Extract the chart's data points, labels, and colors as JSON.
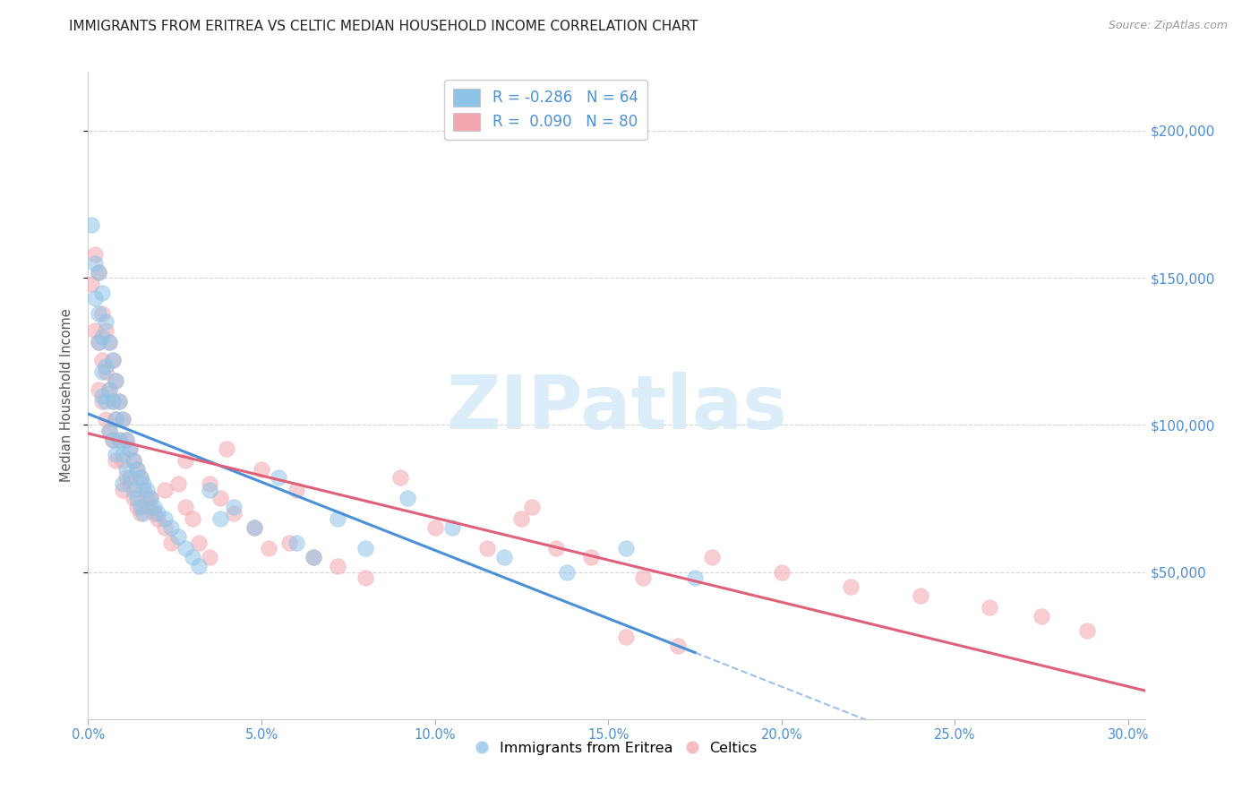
{
  "title": "IMMIGRANTS FROM ERITREA VS CELTIC MEDIAN HOUSEHOLD INCOME CORRELATION CHART",
  "source": "Source: ZipAtlas.com",
  "ylabel": "Median Household Income",
  "xlim": [
    0.0,
    0.305
  ],
  "ylim": [
    0,
    220000
  ],
  "yticks": [
    50000,
    100000,
    150000,
    200000
  ],
  "ytick_labels": [
    "$50,000",
    "$100,000",
    "$150,000",
    "$200,000"
  ],
  "xticks": [
    0.0,
    0.05,
    0.1,
    0.15,
    0.2,
    0.25,
    0.3
  ],
  "xtick_labels": [
    "0.0%",
    "5.0%",
    "10.0%",
    "15.0%",
    "20.0%",
    "25.0%",
    "30.0%"
  ],
  "blue_R": -0.286,
  "blue_N": 64,
  "pink_R": 0.09,
  "pink_N": 80,
  "blue_color": "#8ec4e8",
  "pink_color": "#f4a6b0",
  "blue_edge_color": "#5a9fd4",
  "pink_edge_color": "#e07080",
  "blue_line_color": "#4a90d9",
  "pink_line_color": "#e0607a",
  "axis_tick_color": "#4a90d9",
  "title_color": "#222222",
  "watermark_text": "ZIPatlas",
  "watermark_color": "#d5eaf8",
  "legend_R_color": "#4a90d9",
  "legend_N_color": "#4a90d9",
  "blue_x": [
    0.001,
    0.002,
    0.002,
    0.003,
    0.003,
    0.003,
    0.004,
    0.004,
    0.004,
    0.004,
    0.005,
    0.005,
    0.005,
    0.006,
    0.006,
    0.006,
    0.007,
    0.007,
    0.007,
    0.008,
    0.008,
    0.008,
    0.009,
    0.009,
    0.01,
    0.01,
    0.01,
    0.011,
    0.011,
    0.012,
    0.012,
    0.013,
    0.013,
    0.014,
    0.014,
    0.015,
    0.015,
    0.016,
    0.016,
    0.017,
    0.018,
    0.019,
    0.02,
    0.022,
    0.024,
    0.026,
    0.028,
    0.03,
    0.032,
    0.035,
    0.038,
    0.042,
    0.048,
    0.055,
    0.06,
    0.065,
    0.072,
    0.08,
    0.092,
    0.105,
    0.12,
    0.138,
    0.155,
    0.175
  ],
  "blue_y": [
    168000,
    155000,
    143000,
    152000,
    138000,
    128000,
    145000,
    130000,
    118000,
    110000,
    135000,
    120000,
    108000,
    128000,
    112000,
    98000,
    122000,
    108000,
    95000,
    115000,
    102000,
    90000,
    108000,
    95000,
    102000,
    90000,
    80000,
    95000,
    85000,
    92000,
    82000,
    88000,
    78000,
    85000,
    75000,
    82000,
    72000,
    80000,
    70000,
    78000,
    75000,
    72000,
    70000,
    68000,
    65000,
    62000,
    58000,
    55000,
    52000,
    78000,
    68000,
    72000,
    65000,
    82000,
    60000,
    55000,
    68000,
    58000,
    75000,
    65000,
    55000,
    50000,
    58000,
    48000
  ],
  "pink_x": [
    0.001,
    0.002,
    0.002,
    0.003,
    0.003,
    0.003,
    0.004,
    0.004,
    0.004,
    0.005,
    0.005,
    0.005,
    0.006,
    0.006,
    0.006,
    0.007,
    0.007,
    0.007,
    0.008,
    0.008,
    0.008,
    0.009,
    0.009,
    0.01,
    0.01,
    0.01,
    0.011,
    0.011,
    0.012,
    0.012,
    0.013,
    0.013,
    0.014,
    0.014,
    0.015,
    0.015,
    0.016,
    0.017,
    0.018,
    0.019,
    0.02,
    0.022,
    0.024,
    0.026,
    0.028,
    0.03,
    0.032,
    0.035,
    0.038,
    0.042,
    0.048,
    0.052,
    0.058,
    0.065,
    0.072,
    0.08,
    0.09,
    0.1,
    0.115,
    0.128,
    0.145,
    0.16,
    0.18,
    0.2,
    0.22,
    0.24,
    0.26,
    0.275,
    0.288,
    0.155,
    0.17,
    0.04,
    0.05,
    0.06,
    0.125,
    0.135,
    0.035,
    0.028,
    0.022,
    0.018
  ],
  "pink_y": [
    148000,
    158000,
    132000,
    152000,
    128000,
    112000,
    138000,
    122000,
    108000,
    132000,
    118000,
    102000,
    128000,
    112000,
    98000,
    122000,
    108000,
    95000,
    115000,
    102000,
    88000,
    108000,
    95000,
    102000,
    88000,
    78000,
    95000,
    82000,
    92000,
    80000,
    88000,
    75000,
    85000,
    72000,
    82000,
    70000,
    78000,
    75000,
    72000,
    70000,
    68000,
    65000,
    60000,
    80000,
    72000,
    68000,
    60000,
    55000,
    75000,
    70000,
    65000,
    58000,
    60000,
    55000,
    52000,
    48000,
    82000,
    65000,
    58000,
    72000,
    55000,
    48000,
    55000,
    50000,
    45000,
    42000,
    38000,
    35000,
    30000,
    28000,
    25000,
    92000,
    85000,
    78000,
    68000,
    58000,
    80000,
    88000,
    78000,
    75000
  ]
}
